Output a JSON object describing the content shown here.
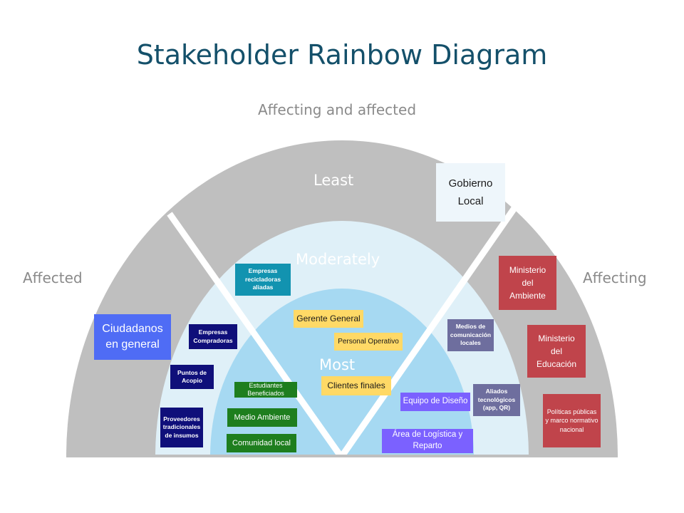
{
  "title": "Stakeholder Rainbow Diagram",
  "axis_labels": {
    "top": "Affecting and affected",
    "left": "Affected",
    "right": "Affecting"
  },
  "rings": {
    "outer": "Least",
    "middle": "Moderately",
    "inner": "Most"
  },
  "stakeholders": {
    "empresas_recicladoras": "Empresas recicladoras aliadas",
    "empresas_compradoras": "Empresas Compradoras",
    "puntos_acopio": "Puntos de Acopio",
    "proveedores_tradicionales": "Proveedores tradicionales de insumos",
    "ciudadanos": "Ciudadanos en general",
    "estudiantes": "Estudiantes Beneficiados",
    "medio_ambiente": "Medio Ambiente",
    "comunidad_local": "Comunidad local",
    "gerente_general": "Gerente General",
    "personal_operativo": "Personal Operativo",
    "clientes_finales": "Clientes finales",
    "equipo_diseno": "Equipo de Diseño",
    "logistica": "Área de Logística y Reparto",
    "medios_comunicacion": "Medios de comunicación locales",
    "aliados_tecnologicos": "Aliados tecnológicos (app, QR)",
    "gobierno_local": "Gobierno Local",
    "ministerio_ambiente": "Ministerio del Ambiente",
    "ministerio_educacion": "Ministerio del Educación",
    "politicas_publicas": "Políticas públicas y marco normativo nacional"
  },
  "colors": {
    "title": "#14506a",
    "outer_ring": "#bfbfbf",
    "middle_ring": "#dff0f8",
    "inner_ring": "#a6d9f2"
  }
}
